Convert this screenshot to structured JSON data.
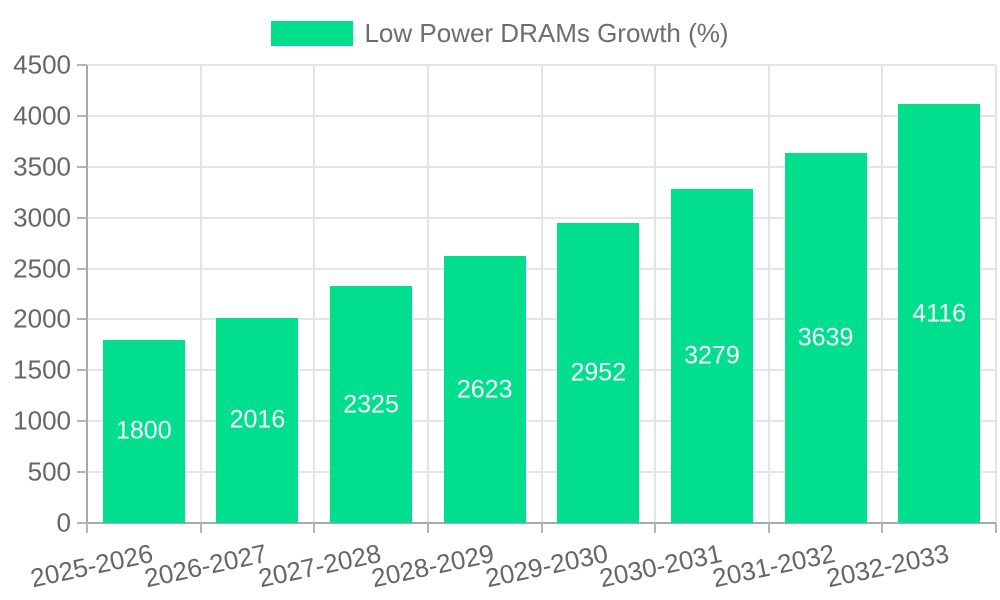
{
  "legend": {
    "label": "Low Power DRAMs Growth (%)"
  },
  "colors": {
    "bar": "#00DE8E",
    "grid_line": "#e5e5e5",
    "axis_line": "#a9a9a9",
    "tick_mark": "#b5b5b5",
    "tick_label": "#666666",
    "legend_text": "#6d6d6d",
    "data_label": "#ffffff",
    "background": "#ffffff"
  },
  "chart_data": {
    "type": "bar",
    "title": "Low Power DRAMs Growth (%)",
    "categories": [
      "2025-2026",
      "2026-2027",
      "2027-2028",
      "2028-2029",
      "2029-2030",
      "2030-2031",
      "2031-2032",
      "2032-2033"
    ],
    "values": [
      1800,
      2016,
      2325,
      2623,
      2952,
      3279,
      3639,
      4116
    ],
    "xlabel": "",
    "ylabel": "",
    "ylim": [
      0,
      4500
    ],
    "ytick_step": 500,
    "ytick_labels": [
      "0",
      "500",
      "1000",
      "1500",
      "2000",
      "2500",
      "3000",
      "3500",
      "4000",
      "4500"
    ],
    "grid": true,
    "legend_position": "top",
    "data_labels": "center-white"
  }
}
